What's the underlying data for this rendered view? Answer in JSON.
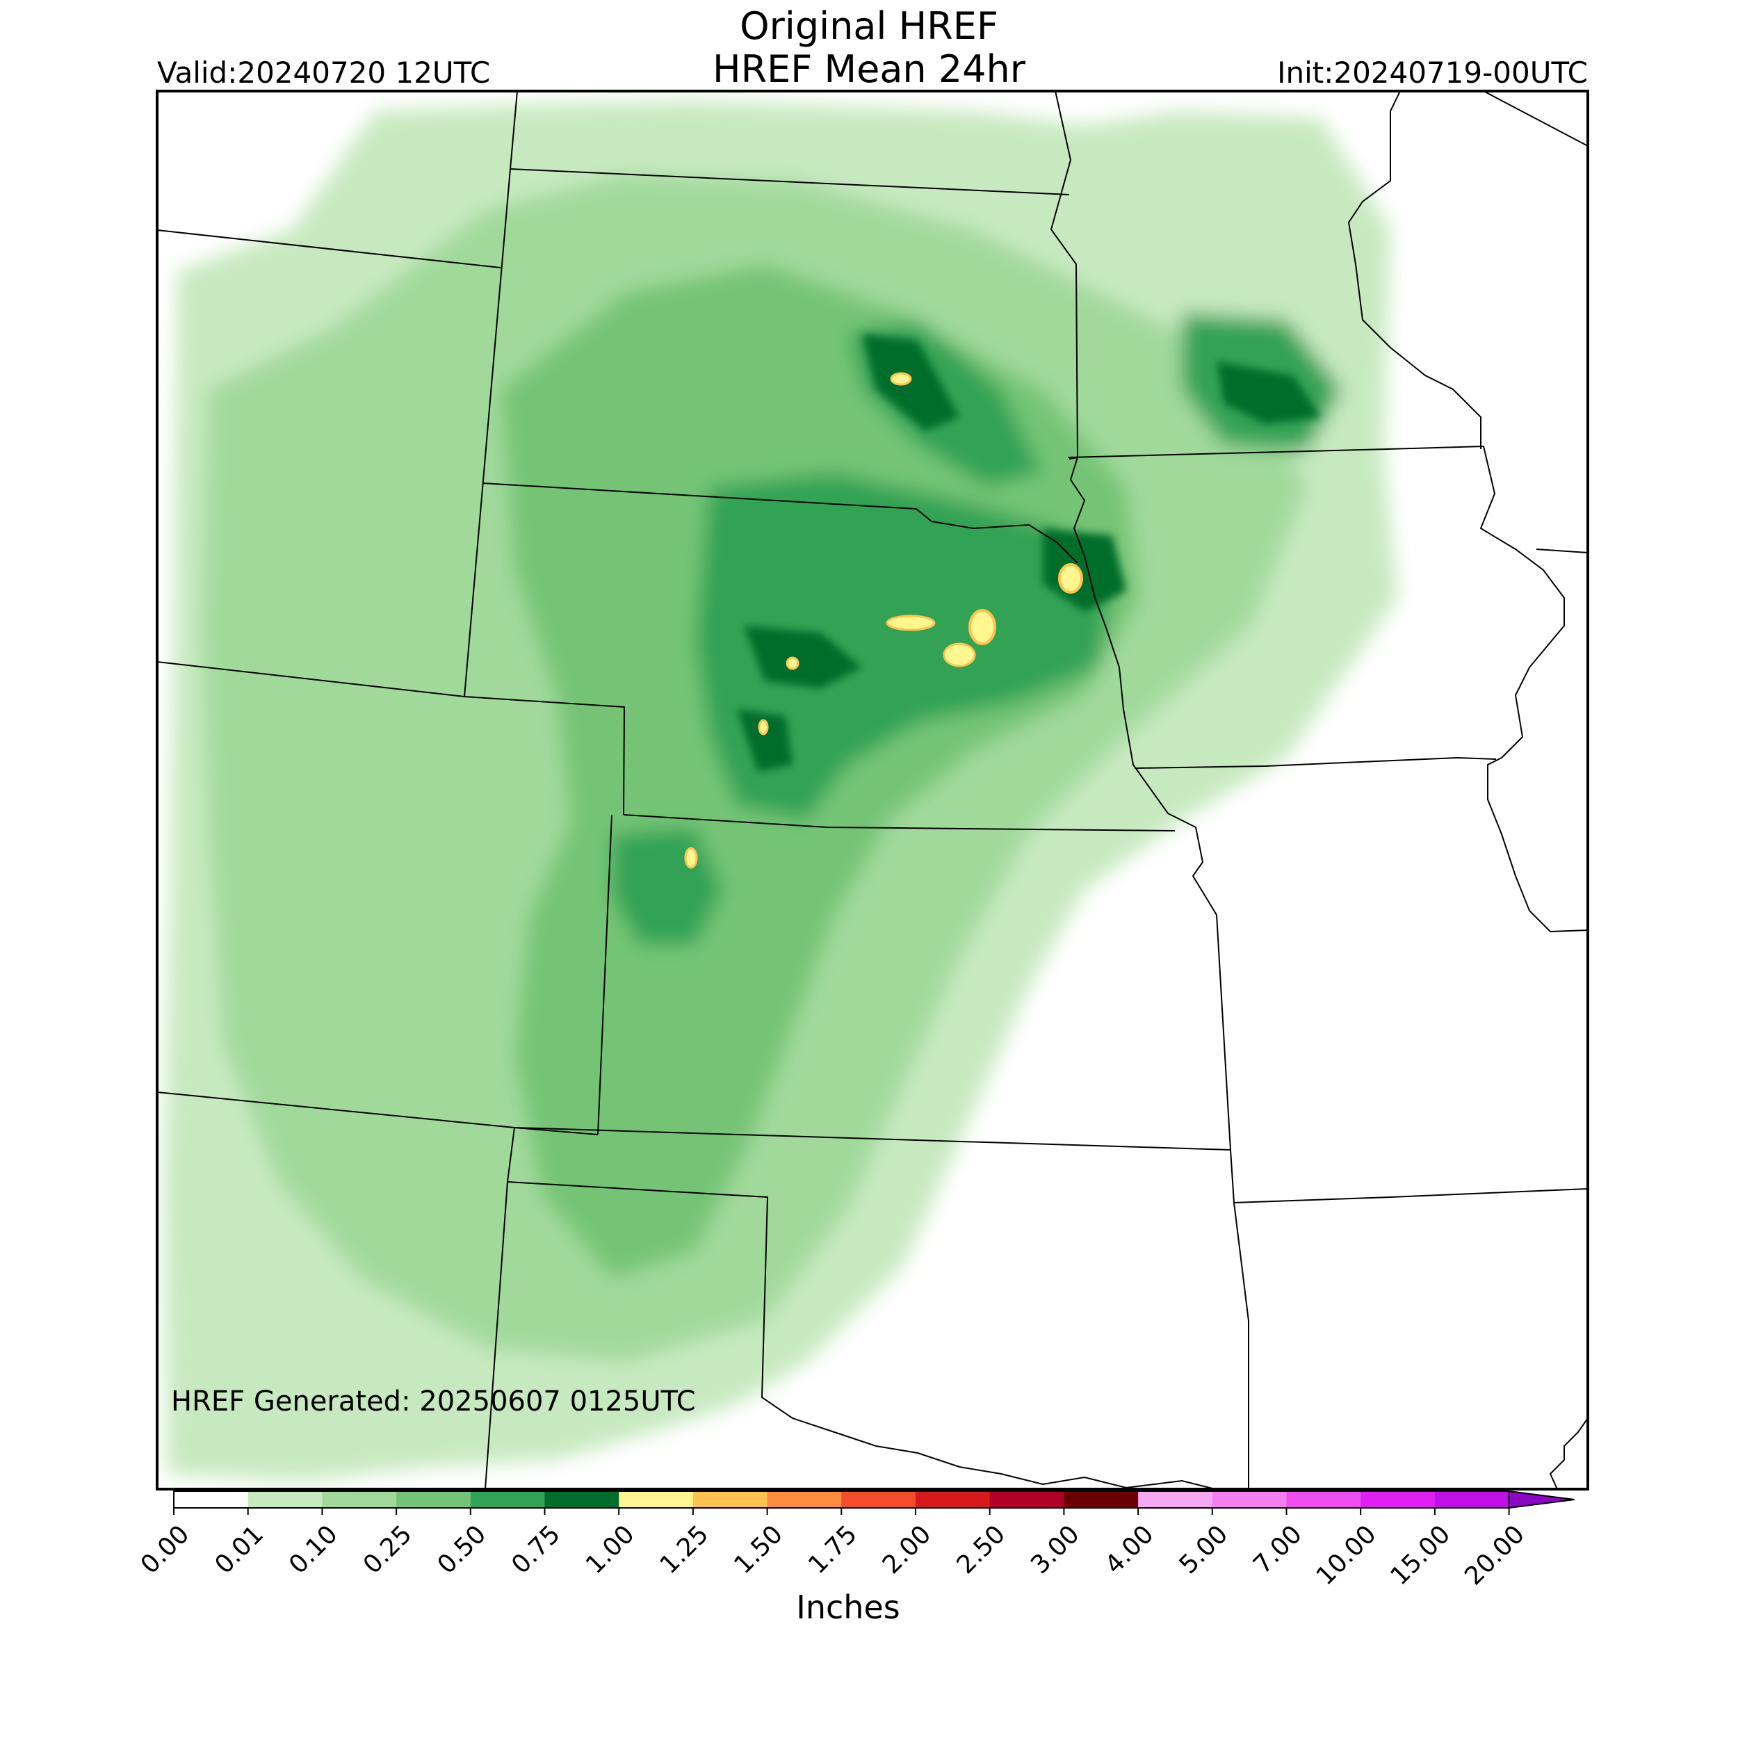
{
  "header": {
    "title_line1": "Original HREF",
    "title_line2": "HREF Mean 24hr",
    "valid": "Valid:20240720 12UTC",
    "init": "Init:20240719-00UTC"
  },
  "map": {
    "field": "24hr mean precipitation",
    "annotation": "HREF Generated: 20250607 0125UTC"
  },
  "colorbar": {
    "label": "Inches",
    "ticks": [
      "0.00",
      "0.01",
      "0.10",
      "0.25",
      "0.50",
      "0.75",
      "1.00",
      "1.25",
      "1.50",
      "1.75",
      "2.00",
      "2.50",
      "3.00",
      "4.00",
      "5.00",
      "7.00",
      "10.00",
      "15.00",
      "20.00"
    ],
    "colors": [
      "#ffffff",
      "#c7e9c0",
      "#a1d99b",
      "#74c476",
      "#31a354",
      "#006d2c",
      "#fff68f",
      "#ffc34f",
      "#fc8d3c",
      "#f54c2b",
      "#d7191c",
      "#b10026",
      "#6a0000",
      "#f7a8f2",
      "#f47ff0",
      "#ef4df0",
      "#e01ff2",
      "#c010e8",
      "#8a07c7"
    ],
    "extend": "max"
  },
  "colors": {
    "frame": "#000000",
    "border": "#000000"
  }
}
